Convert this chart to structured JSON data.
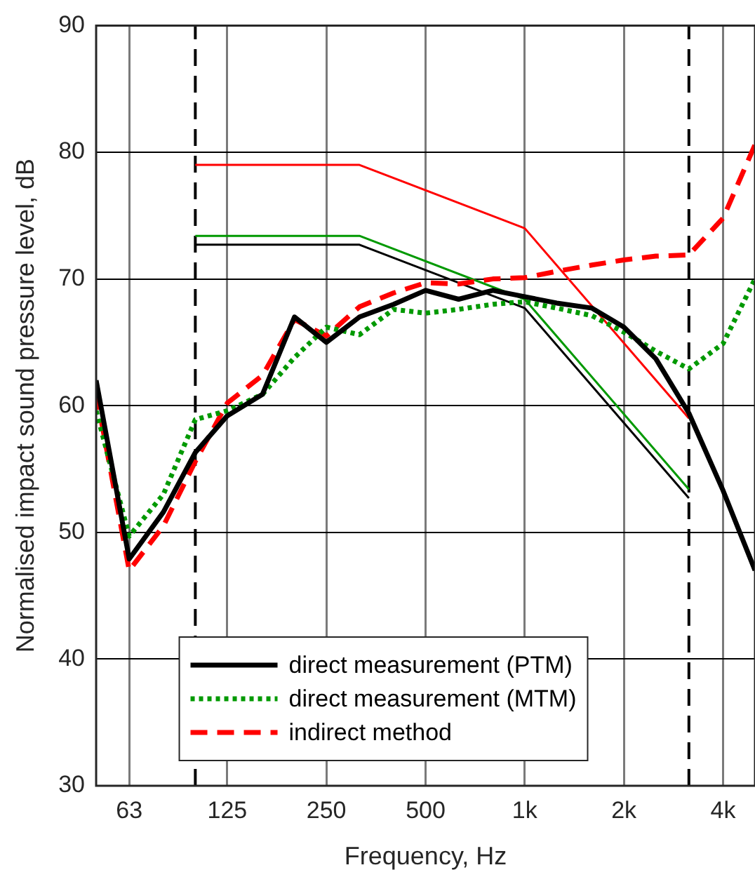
{
  "chart_data": {
    "type": "line",
    "xlabel": "Frequency, Hz",
    "ylabel": "Normalised impact sound pressure level, dB",
    "log": "x",
    "xlim": [
      50,
      5000
    ],
    "xticks": [
      63,
      125,
      250,
      500,
      {
        "value": 1000,
        "label": "1k"
      },
      {
        "value": 2000,
        "label": "2k"
      },
      {
        "value": 4000,
        "label": "4k"
      }
    ],
    "ylim": [
      30,
      90
    ],
    "yticks": [
      30,
      40,
      50,
      60,
      70,
      80,
      90
    ],
    "grid": true,
    "legend": "bottom",
    "marker": "none",
    "x": [
      50,
      63,
      80,
      100,
      125,
      160,
      200,
      250,
      315,
      400,
      500,
      630,
      800,
      1000,
      1250,
      1600,
      2000,
      2500,
      3150,
      4000,
      5000
    ],
    "series": [
      {
        "name": "direct measurement (PTM)",
        "color": "#000000",
        "line_style": "solid",
        "values": [
          62,
          47.9,
          51.6,
          56.3,
          59.2,
          60.9,
          67,
          65,
          67,
          68,
          69.1,
          68.4,
          69.1,
          68.6,
          68.1,
          67.7,
          66.2,
          63.7,
          59.4,
          53.3,
          47
        ]
      },
      {
        "name": "direct measurement (MTM)",
        "color": "#009900",
        "line_style": "dotted",
        "values": [
          59.6,
          49.7,
          53,
          58.9,
          59.6,
          60.9,
          63.8,
          66.2,
          65.6,
          67.6,
          67.3,
          67.6,
          68,
          68.2,
          67.7,
          67.1,
          65.8,
          64.3,
          62.9,
          64.9,
          70
        ]
      },
      {
        "name": "indirect method",
        "color": "#ff0000",
        "line_style": "dashed",
        "values": [
          61,
          47,
          50.5,
          55.6,
          60.2,
          62.4,
          66.8,
          65.5,
          67.8,
          68.9,
          69.7,
          69.6,
          70,
          70.1,
          70.6,
          71.1,
          71.5,
          71.8,
          71.9,
          74.8,
          80.6
        ]
      },
      {
        "color": "#ff0000",
        "line_style": "solid",
        "x": [
          100,
          315,
          1000,
          3150
        ],
        "values": [
          79,
          79,
          74,
          59
        ]
      },
      {
        "color": "#009900",
        "line_style": "solid",
        "x": [
          100,
          315,
          1000,
          3150
        ],
        "values": [
          73.4,
          73.4,
          68.4,
          53.4
        ]
      },
      {
        "color": "#000000",
        "line_style": "solid",
        "x": [
          100,
          315,
          1000,
          3150
        ],
        "values": [
          72.7,
          72.7,
          67.7,
          52.7
        ]
      }
    ],
    "ref_lines": [
      {
        "axis": "x",
        "value": 100,
        "color": "#000000",
        "line_style": "dashed"
      },
      {
        "axis": "x",
        "value": 3150,
        "color": "#000000",
        "line_style": "dashed"
      }
    ]
  }
}
